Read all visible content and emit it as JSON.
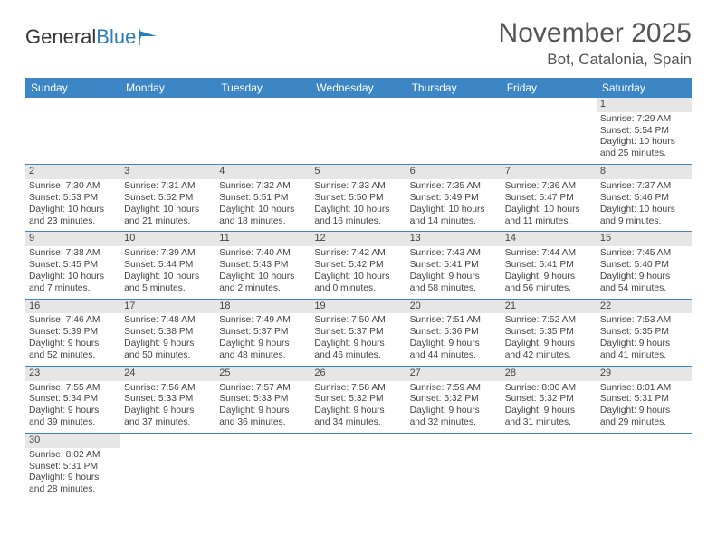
{
  "logo": {
    "text1": "General",
    "text2": "Blue"
  },
  "title": "November 2025",
  "location": "Bot, Catalonia, Spain",
  "colors": {
    "header_bg": "#3d86c6",
    "header_text": "#ffffff",
    "daynum_bg": "#e6e6e6",
    "rule": "#3d86c6",
    "logo_blue": "#2b7bbf"
  },
  "weekdays": [
    "Sunday",
    "Monday",
    "Tuesday",
    "Wednesday",
    "Thursday",
    "Friday",
    "Saturday"
  ],
  "weeks": [
    [
      {
        "day": "",
        "lines": []
      },
      {
        "day": "",
        "lines": []
      },
      {
        "day": "",
        "lines": []
      },
      {
        "day": "",
        "lines": []
      },
      {
        "day": "",
        "lines": []
      },
      {
        "day": "",
        "lines": []
      },
      {
        "day": "1",
        "lines": [
          "Sunrise: 7:29 AM",
          "Sunset: 5:54 PM",
          "Daylight: 10 hours and 25 minutes."
        ]
      }
    ],
    [
      {
        "day": "2",
        "lines": [
          "Sunrise: 7:30 AM",
          "Sunset: 5:53 PM",
          "Daylight: 10 hours and 23 minutes."
        ]
      },
      {
        "day": "3",
        "lines": [
          "Sunrise: 7:31 AM",
          "Sunset: 5:52 PM",
          "Daylight: 10 hours and 21 minutes."
        ]
      },
      {
        "day": "4",
        "lines": [
          "Sunrise: 7:32 AM",
          "Sunset: 5:51 PM",
          "Daylight: 10 hours and 18 minutes."
        ]
      },
      {
        "day": "5",
        "lines": [
          "Sunrise: 7:33 AM",
          "Sunset: 5:50 PM",
          "Daylight: 10 hours and 16 minutes."
        ]
      },
      {
        "day": "6",
        "lines": [
          "Sunrise: 7:35 AM",
          "Sunset: 5:49 PM",
          "Daylight: 10 hours and 14 minutes."
        ]
      },
      {
        "day": "7",
        "lines": [
          "Sunrise: 7:36 AM",
          "Sunset: 5:47 PM",
          "Daylight: 10 hours and 11 minutes."
        ]
      },
      {
        "day": "8",
        "lines": [
          "Sunrise: 7:37 AM",
          "Sunset: 5:46 PM",
          "Daylight: 10 hours and 9 minutes."
        ]
      }
    ],
    [
      {
        "day": "9",
        "lines": [
          "Sunrise: 7:38 AM",
          "Sunset: 5:45 PM",
          "Daylight: 10 hours and 7 minutes."
        ]
      },
      {
        "day": "10",
        "lines": [
          "Sunrise: 7:39 AM",
          "Sunset: 5:44 PM",
          "Daylight: 10 hours and 5 minutes."
        ]
      },
      {
        "day": "11",
        "lines": [
          "Sunrise: 7:40 AM",
          "Sunset: 5:43 PM",
          "Daylight: 10 hours and 2 minutes."
        ]
      },
      {
        "day": "12",
        "lines": [
          "Sunrise: 7:42 AM",
          "Sunset: 5:42 PM",
          "Daylight: 10 hours and 0 minutes."
        ]
      },
      {
        "day": "13",
        "lines": [
          "Sunrise: 7:43 AM",
          "Sunset: 5:41 PM",
          "Daylight: 9 hours and 58 minutes."
        ]
      },
      {
        "day": "14",
        "lines": [
          "Sunrise: 7:44 AM",
          "Sunset: 5:41 PM",
          "Daylight: 9 hours and 56 minutes."
        ]
      },
      {
        "day": "15",
        "lines": [
          "Sunrise: 7:45 AM",
          "Sunset: 5:40 PM",
          "Daylight: 9 hours and 54 minutes."
        ]
      }
    ],
    [
      {
        "day": "16",
        "lines": [
          "Sunrise: 7:46 AM",
          "Sunset: 5:39 PM",
          "Daylight: 9 hours and 52 minutes."
        ]
      },
      {
        "day": "17",
        "lines": [
          "Sunrise: 7:48 AM",
          "Sunset: 5:38 PM",
          "Daylight: 9 hours and 50 minutes."
        ]
      },
      {
        "day": "18",
        "lines": [
          "Sunrise: 7:49 AM",
          "Sunset: 5:37 PM",
          "Daylight: 9 hours and 48 minutes."
        ]
      },
      {
        "day": "19",
        "lines": [
          "Sunrise: 7:50 AM",
          "Sunset: 5:37 PM",
          "Daylight: 9 hours and 46 minutes."
        ]
      },
      {
        "day": "20",
        "lines": [
          "Sunrise: 7:51 AM",
          "Sunset: 5:36 PM",
          "Daylight: 9 hours and 44 minutes."
        ]
      },
      {
        "day": "21",
        "lines": [
          "Sunrise: 7:52 AM",
          "Sunset: 5:35 PM",
          "Daylight: 9 hours and 42 minutes."
        ]
      },
      {
        "day": "22",
        "lines": [
          "Sunrise: 7:53 AM",
          "Sunset: 5:35 PM",
          "Daylight: 9 hours and 41 minutes."
        ]
      }
    ],
    [
      {
        "day": "23",
        "lines": [
          "Sunrise: 7:55 AM",
          "Sunset: 5:34 PM",
          "Daylight: 9 hours and 39 minutes."
        ]
      },
      {
        "day": "24",
        "lines": [
          "Sunrise: 7:56 AM",
          "Sunset: 5:33 PM",
          "Daylight: 9 hours and 37 minutes."
        ]
      },
      {
        "day": "25",
        "lines": [
          "Sunrise: 7:57 AM",
          "Sunset: 5:33 PM",
          "Daylight: 9 hours and 36 minutes."
        ]
      },
      {
        "day": "26",
        "lines": [
          "Sunrise: 7:58 AM",
          "Sunset: 5:32 PM",
          "Daylight: 9 hours and 34 minutes."
        ]
      },
      {
        "day": "27",
        "lines": [
          "Sunrise: 7:59 AM",
          "Sunset: 5:32 PM",
          "Daylight: 9 hours and 32 minutes."
        ]
      },
      {
        "day": "28",
        "lines": [
          "Sunrise: 8:00 AM",
          "Sunset: 5:32 PM",
          "Daylight: 9 hours and 31 minutes."
        ]
      },
      {
        "day": "29",
        "lines": [
          "Sunrise: 8:01 AM",
          "Sunset: 5:31 PM",
          "Daylight: 9 hours and 29 minutes."
        ]
      }
    ],
    [
      {
        "day": "30",
        "lines": [
          "Sunrise: 8:02 AM",
          "Sunset: 5:31 PM",
          "Daylight: 9 hours and 28 minutes."
        ]
      },
      {
        "day": "",
        "lines": []
      },
      {
        "day": "",
        "lines": []
      },
      {
        "day": "",
        "lines": []
      },
      {
        "day": "",
        "lines": []
      },
      {
        "day": "",
        "lines": []
      },
      {
        "day": "",
        "lines": []
      }
    ]
  ]
}
